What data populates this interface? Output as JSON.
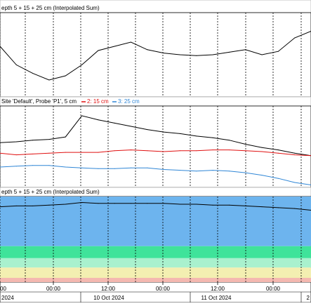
{
  "chart_data": [
    {
      "type": "line",
      "title": "epth 5 + 15 + 25 cm (Interpolated Sum)",
      "x_hours": [
        0,
        3,
        6,
        9,
        12,
        15,
        18,
        21,
        24,
        27,
        30,
        33,
        36,
        39,
        42,
        45,
        48,
        51,
        54,
        57
      ],
      "series": [
        {
          "name": "",
          "color": "#000000",
          "values": [
            0.6,
            0.38,
            0.28,
            0.2,
            0.25,
            0.38,
            0.55,
            0.6,
            0.65,
            0.56,
            0.52,
            0.5,
            0.49,
            0.5,
            0.53,
            0.56,
            0.5,
            0.54,
            0.7,
            0.78
          ]
        }
      ],
      "grid": true
    },
    {
      "type": "line",
      "title": "Site 'Default', Probe 'P1', 5 cm",
      "legend": [
        "2: 15 cm",
        "3: 25 cm"
      ],
      "x_hours": [
        0,
        3,
        6,
        9,
        12,
        15,
        18,
        21,
        24,
        27,
        30,
        33,
        36,
        39,
        42,
        45,
        48,
        51,
        54,
        57
      ],
      "series": [
        {
          "name": "",
          "color": "#000000",
          "values": [
            0.55,
            0.56,
            0.58,
            0.59,
            0.62,
            0.88,
            0.83,
            0.79,
            0.75,
            0.71,
            0.68,
            0.66,
            0.63,
            0.61,
            0.58,
            0.53,
            0.49,
            0.46,
            0.42,
            0.39
          ]
        },
        {
          "name": "2: 15 cm",
          "color": "#e01010",
          "values": [
            0.42,
            0.4,
            0.41,
            0.42,
            0.43,
            0.43,
            0.43,
            0.45,
            0.46,
            0.45,
            0.44,
            0.45,
            0.45,
            0.46,
            0.46,
            0.45,
            0.44,
            0.42,
            0.4,
            0.39
          ]
        },
        {
          "name": "3: 25 cm",
          "color": "#2f86d6",
          "values": [
            0.25,
            0.26,
            0.27,
            0.27,
            0.25,
            0.24,
            0.23,
            0.23,
            0.24,
            0.24,
            0.22,
            0.21,
            0.2,
            0.21,
            0.2,
            0.18,
            0.15,
            0.11,
            0.06,
            0.03
          ]
        }
      ],
      "grid": true
    },
    {
      "type": "area",
      "title": "epth 5 + 15 + 25 cm (Interpolated Sum)",
      "x_hours": [
        0,
        3,
        6,
        9,
        12,
        15,
        18,
        21,
        24,
        27,
        30,
        33,
        36,
        39,
        42,
        45,
        48,
        51,
        54,
        57
      ],
      "series": [
        {
          "name": "",
          "color": "#000000",
          "values": [
            0.88,
            0.89,
            0.89,
            0.9,
            0.91,
            0.93,
            0.92,
            0.92,
            0.92,
            0.92,
            0.92,
            0.91,
            0.91,
            0.9,
            0.9,
            0.89,
            0.88,
            0.87,
            0.86,
            0.84
          ]
        }
      ],
      "bands": [
        {
          "from": 0.42,
          "to": 1.0,
          "color": "#6db4ee"
        },
        {
          "from": 0.28,
          "to": 0.42,
          "color": "#3fe39a"
        },
        {
          "from": 0.17,
          "to": 0.28,
          "color": "#a9f1ce"
        },
        {
          "from": 0.0,
          "to": 0.17,
          "color": "#f3efb1"
        }
      ],
      "x_tick_labels": [
        "00",
        "00:00",
        "12:00",
        "00:00",
        "12:00",
        "00:00"
      ],
      "date_labels": [
        "2024",
        "10 Oct 2024",
        "11 Oct 2024",
        "2"
      ],
      "grid": true
    }
  ]
}
